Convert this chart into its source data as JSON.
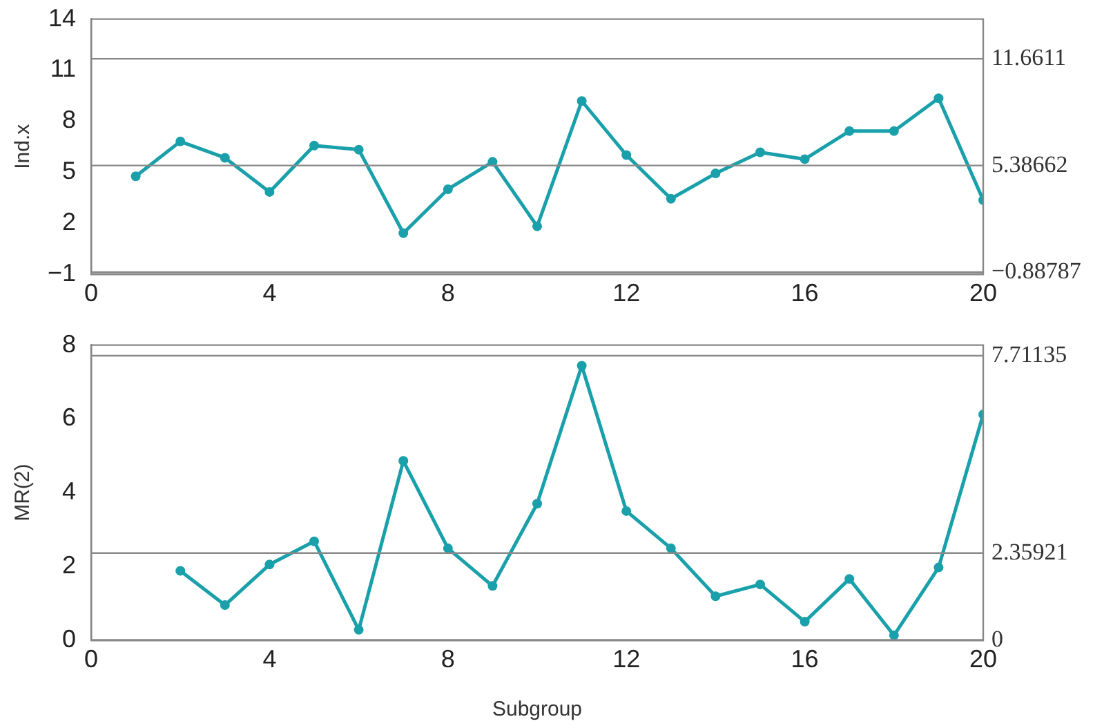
{
  "chart_data": [
    {
      "type": "line",
      "ylabel": "Ind.x",
      "xlim": [
        0,
        20
      ],
      "xticks": [
        0,
        4,
        8,
        12,
        16,
        20
      ],
      "ylim": [
        -1,
        14
      ],
      "yticks": [
        {
          "value": -1,
          "label": "−1"
        },
        2,
        5,
        8,
        11,
        14
      ],
      "grid": false,
      "legend": false,
      "marker": "circle",
      "line_style": "solid",
      "series": [
        {
          "color": "#1aa0aa",
          "x": [
            1,
            2,
            3,
            4,
            5,
            6,
            7,
            8,
            9,
            10,
            11,
            12,
            13,
            14,
            15,
            16,
            17,
            18,
            19,
            20
          ],
          "values": [
            4.75,
            6.8,
            5.84,
            3.83,
            6.56,
            6.32,
            1.41,
            3.99,
            5.6,
            1.81,
            9.18,
            6.0,
            3.43,
            4.92,
            6.16,
            5.76,
            7.41,
            7.41,
            9.34,
            3.35
          ]
        }
      ],
      "ref_lines": [
        {
          "axis": "y",
          "value": 11.6611,
          "label": "11.6611",
          "color": "#888888"
        },
        {
          "axis": "y",
          "value": 5.38662,
          "label": "5.38662",
          "color": "#888888"
        },
        {
          "axis": "y",
          "value": -0.88787,
          "label": "−0.88787",
          "color": "#888888"
        }
      ]
    },
    {
      "type": "line",
      "xlabel": "Subgroup",
      "ylabel": "MR(2)",
      "xlim": [
        0,
        20
      ],
      "xticks": [
        0,
        4,
        8,
        12,
        16,
        20
      ],
      "ylim": [
        0,
        8
      ],
      "yticks": [
        0,
        2,
        4,
        6,
        8
      ],
      "grid": false,
      "legend": false,
      "marker": "circle",
      "line_style": "solid",
      "series": [
        {
          "color": "#1aa0aa",
          "x": [
            2,
            3,
            4,
            5,
            6,
            7,
            8,
            9,
            10,
            11,
            12,
            13,
            14,
            15,
            16,
            17,
            18,
            19,
            20
          ],
          "values": [
            1.88,
            0.95,
            2.05,
            2.68,
            0.28,
            4.86,
            2.49,
            1.47,
            3.7,
            7.44,
            3.5,
            2.49,
            1.19,
            1.51,
            0.5,
            1.66,
            0.13,
            1.97,
            6.12
          ]
        }
      ],
      "ref_lines": [
        {
          "axis": "y",
          "value": 7.71135,
          "label": "7.71135",
          "color": "#888888"
        },
        {
          "axis": "y",
          "value": 2.35921,
          "label": "2.35921",
          "color": "#888888"
        },
        {
          "axis": "y",
          "value": 0,
          "label": "0",
          "color": "#888888"
        }
      ]
    }
  ]
}
